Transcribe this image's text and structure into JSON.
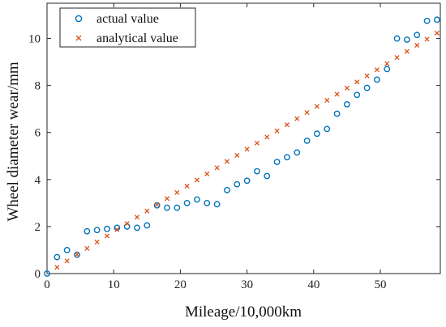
{
  "chart_data": {
    "type": "scatter",
    "title": "",
    "xlabel": "Mileage/10,000km",
    "ylabel": "Wheel diameter wear/mm",
    "xlim": [
      0,
      59
    ],
    "ylim": [
      0,
      11.5
    ],
    "xticks": [
      0,
      10,
      20,
      30,
      40,
      50
    ],
    "yticks": [
      0,
      2,
      4,
      6,
      8,
      10
    ],
    "grid": false,
    "legend_position": "top-left",
    "series": [
      {
        "name": "actual value",
        "marker": "circle",
        "color": "#0072BD",
        "points": [
          [
            0,
            0
          ],
          [
            1.5,
            0.7
          ],
          [
            3,
            1.0
          ],
          [
            4.5,
            0.8
          ],
          [
            6,
            1.8
          ],
          [
            7.5,
            1.85
          ],
          [
            9,
            1.9
          ],
          [
            10.5,
            1.95
          ],
          [
            12,
            2.0
          ],
          [
            13.5,
            1.95
          ],
          [
            15,
            2.05
          ],
          [
            16.5,
            2.9
          ],
          [
            18,
            2.8
          ],
          [
            19.5,
            2.8
          ],
          [
            21,
            3.0
          ],
          [
            22.5,
            3.15
          ],
          [
            24,
            3.0
          ],
          [
            25.5,
            2.95
          ],
          [
            27,
            3.55
          ],
          [
            28.5,
            3.8
          ],
          [
            30,
            3.95
          ],
          [
            31.5,
            4.35
          ],
          [
            33,
            4.15
          ],
          [
            34.5,
            4.75
          ],
          [
            36,
            4.95
          ],
          [
            37.5,
            5.15
          ],
          [
            39,
            5.65
          ],
          [
            40.5,
            5.95
          ],
          [
            42,
            6.15
          ],
          [
            43.5,
            6.8
          ],
          [
            45,
            7.2
          ],
          [
            46.5,
            7.6
          ],
          [
            48,
            7.9
          ],
          [
            49.5,
            8.25
          ],
          [
            51,
            8.7
          ],
          [
            52.5,
            10.0
          ],
          [
            54,
            9.95
          ],
          [
            55.5,
            10.15
          ],
          [
            57,
            10.75
          ],
          [
            58.5,
            10.8
          ]
        ]
      },
      {
        "name": "analytical value",
        "marker": "x",
        "color": "#D95319",
        "points": [
          [
            1.5,
            0.27
          ],
          [
            3,
            0.54
          ],
          [
            4.5,
            0.81
          ],
          [
            6,
            1.07
          ],
          [
            7.5,
            1.34
          ],
          [
            9,
            1.6
          ],
          [
            10.5,
            1.87
          ],
          [
            12,
            2.13
          ],
          [
            13.5,
            2.4
          ],
          [
            15,
            2.66
          ],
          [
            16.5,
            2.93
          ],
          [
            18,
            3.19
          ],
          [
            19.5,
            3.45
          ],
          [
            21,
            3.72
          ],
          [
            22.5,
            3.98
          ],
          [
            24,
            4.24
          ],
          [
            25.5,
            4.5
          ],
          [
            27,
            4.77
          ],
          [
            28.5,
            5.03
          ],
          [
            30,
            5.29
          ],
          [
            31.5,
            5.55
          ],
          [
            33,
            5.81
          ],
          [
            34.5,
            6.07
          ],
          [
            36,
            6.33
          ],
          [
            37.5,
            6.59
          ],
          [
            39,
            6.85
          ],
          [
            40.5,
            7.11
          ],
          [
            42,
            7.37
          ],
          [
            43.5,
            7.63
          ],
          [
            45,
            7.89
          ],
          [
            46.5,
            8.15
          ],
          [
            48,
            8.41
          ],
          [
            49.5,
            8.67
          ],
          [
            51,
            8.93
          ],
          [
            52.5,
            9.19
          ],
          [
            54,
            9.45
          ],
          [
            55.5,
            9.71
          ],
          [
            57,
            9.97
          ],
          [
            58.5,
            10.23
          ]
        ]
      }
    ]
  }
}
